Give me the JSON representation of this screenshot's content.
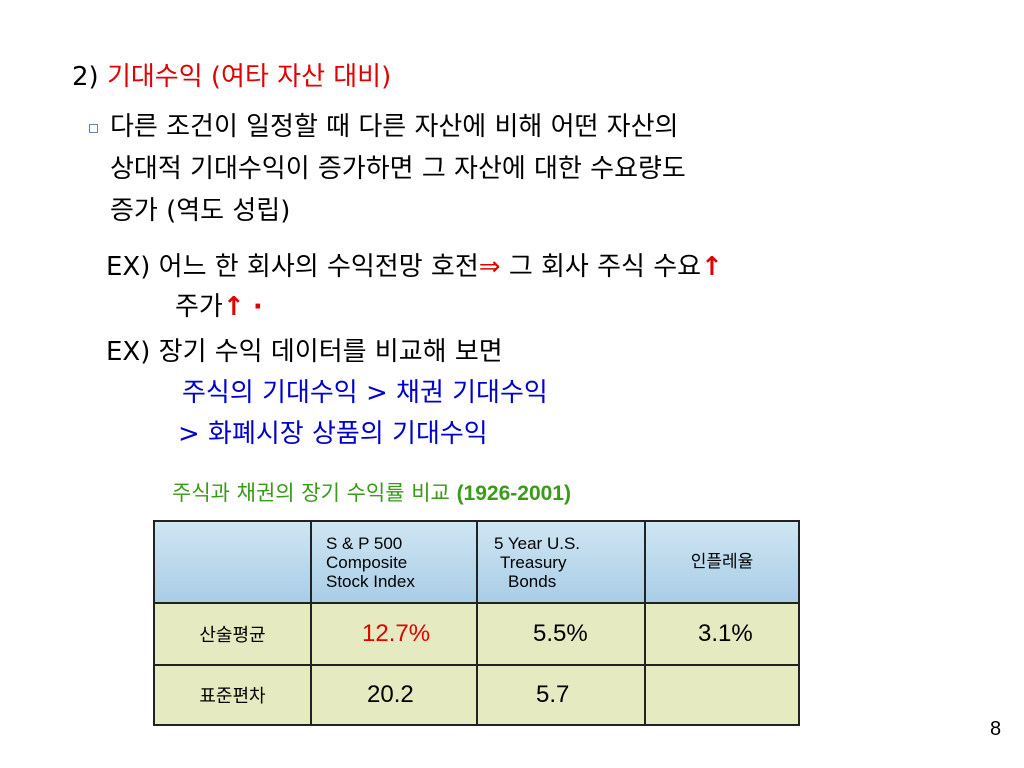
{
  "heading": {
    "number": "2)",
    "title": "기대수익 (여타 자산 대비)"
  },
  "bullet": [
    "다른 조건이 일정할 때 다른 자산에 비해 어떤 자산의 ",
    "상대적 기대수익이 증가하면 그 자산에 대한 수요량도",
    "증가 (역도 성립)"
  ],
  "example1": {
    "line1": "EX) 어느 한 회사의 수익전망 호전",
    "implies": "⇒",
    "line1b": "그 회사 주식 수요",
    "arrow1": "↑",
    "line2": "주가",
    "arrow2": "↑",
    "dot": "·"
  },
  "example2": {
    "line1": "EX) 장기 수익 데이터를 비교해 보면",
    "line2": "주식의 기대수익  > 채권 기대수익",
    "line3": "> 화폐시장 상품의 기대수익"
  },
  "table": {
    "caption": "주식과 채권의 장기 수익률 비교",
    "caption_years": "(1926-2001)",
    "headers": [
      [
        "S & P 500",
        "Composite",
        "Stock Index"
      ],
      [
        "5 Year U.S.",
        "Treasury",
        "Bonds"
      ],
      [
        "인플레율"
      ]
    ],
    "rows": [
      {
        "label": "산술평균",
        "cells": [
          "12.7%",
          "5.5%",
          "3.1%"
        ]
      },
      {
        "label": "표준편차",
        "cells": [
          "20.2",
          "5.7"
        ]
      }
    ]
  },
  "page_number": "8"
}
